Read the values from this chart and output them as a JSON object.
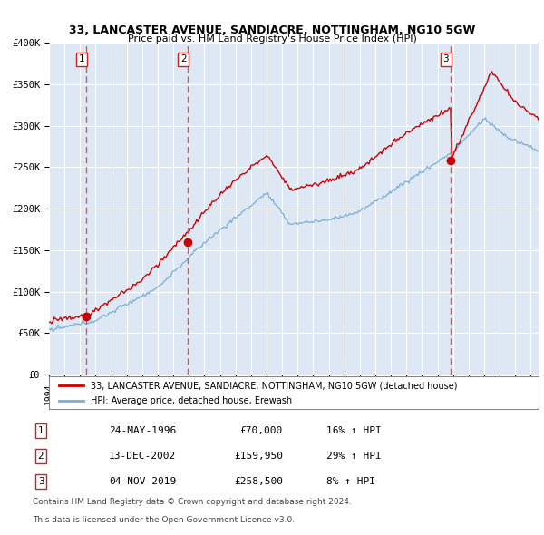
{
  "title": "33, LANCASTER AVENUE, SANDIACRE, NOTTINGHAM, NG10 5GW",
  "subtitle": "Price paid vs. HM Land Registry's House Price Index (HPI)",
  "ylabel_ticks": [
    "£0",
    "£50K",
    "£100K",
    "£150K",
    "£200K",
    "£250K",
    "£300K",
    "£350K",
    "£400K"
  ],
  "ytick_vals": [
    0,
    50000,
    100000,
    150000,
    200000,
    250000,
    300000,
    350000,
    400000
  ],
  "ylim": [
    0,
    400000
  ],
  "xlim_start": 1994.0,
  "xlim_end": 2025.5,
  "sales": [
    {
      "num": 1,
      "date": "24-MAY-1996",
      "price": 70000,
      "year": 1996.38,
      "label_price": "£70,000",
      "hpi_pct": "16% ↑ HPI"
    },
    {
      "num": 2,
      "date": "13-DEC-2002",
      "price": 159950,
      "year": 2002.95,
      "label_price": "£159,950",
      "hpi_pct": "29% ↑ HPI"
    },
    {
      "num": 3,
      "date": "04-NOV-2019",
      "price": 258500,
      "year": 2019.84,
      "label_price": "£258,500",
      "hpi_pct": "8% ↑ HPI"
    }
  ],
  "property_line_color": "#cc0000",
  "hpi_line_color": "#7aaed6",
  "bg_color": "#dde8f4",
  "dashed_line_color": "#ee3333",
  "legend_label_property": "33, LANCASTER AVENUE, SANDIACRE, NOTTINGHAM, NG10 5GW (detached house)",
  "legend_label_hpi": "HPI: Average price, detached house, Erewash",
  "footer_line1": "Contains HM Land Registry data © Crown copyright and database right 2024.",
  "footer_line2": "This data is licensed under the Open Government Licence v3.0."
}
